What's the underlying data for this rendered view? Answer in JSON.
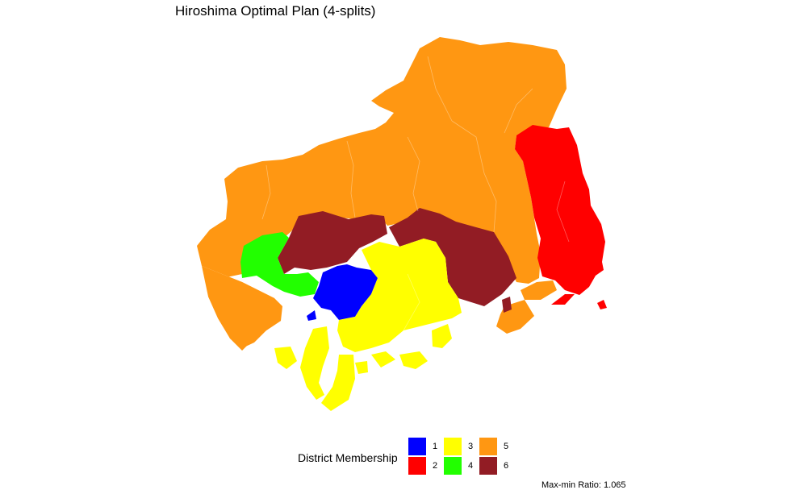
{
  "title": "Hiroshima Optimal Plan (4-splits)",
  "legend": {
    "title": "District Membership",
    "items": [
      {
        "label": "1",
        "color": "#0000ff"
      },
      {
        "label": "2",
        "color": "#ff0000"
      },
      {
        "label": "3",
        "color": "#ffff00"
      },
      {
        "label": "4",
        "color": "#22ff00"
      },
      {
        "label": "5",
        "color": "#ff9712"
      },
      {
        "label": "6",
        "color": "#921c24"
      }
    ]
  },
  "footnote": "Max-min Ratio: 1.065"
}
